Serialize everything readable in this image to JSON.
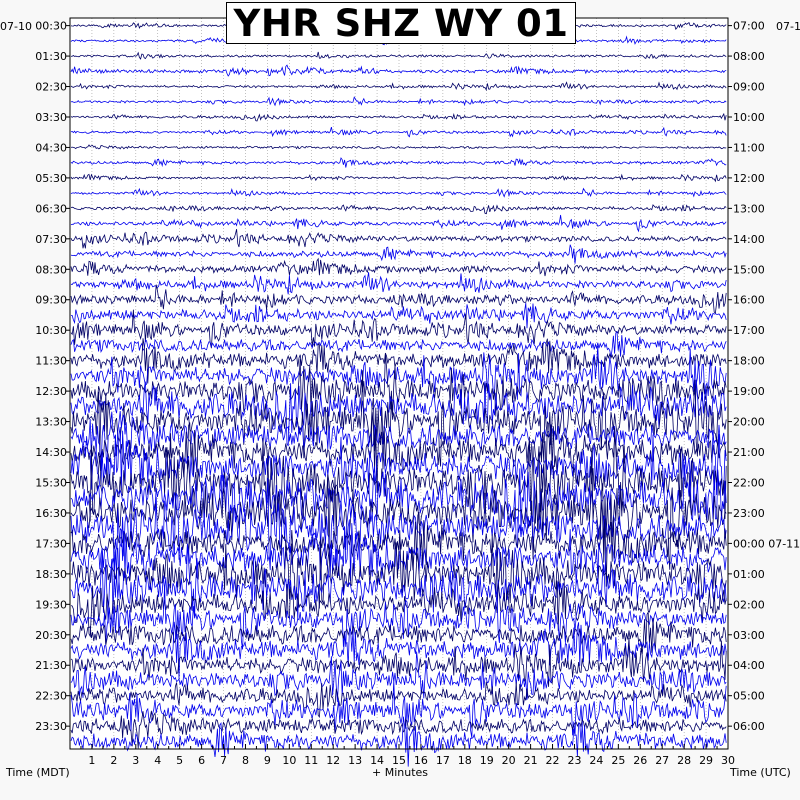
{
  "chart_data": {
    "type": "line",
    "title": "YHR SHZ WY 01",
    "xlabel": "+ Minutes",
    "left_axis_label": "Time (MDT)",
    "right_axis_label": "Time (UTC)",
    "left_date_label": "07-10",
    "right_date_label": "07-1",
    "x_ticks": [
      "1",
      "2",
      "3",
      "4",
      "5",
      "6",
      "7",
      "8",
      "9",
      "10",
      "11",
      "12",
      "13",
      "14",
      "15",
      "16",
      "17",
      "18",
      "19",
      "20",
      "21",
      "22",
      "23",
      "24",
      "25",
      "26",
      "27",
      "28",
      "29",
      "30"
    ],
    "xlim": [
      0,
      30
    ],
    "left_ticks": [
      "00:30",
      "01:30",
      "02:30",
      "03:30",
      "04:30",
      "05:30",
      "06:30",
      "07:30",
      "08:30",
      "09:30",
      "10:30",
      "11:30",
      "12:30",
      "13:30",
      "14:30",
      "15:30",
      "16:30",
      "17:30",
      "18:30",
      "19:30",
      "20:30",
      "21:30",
      "22:30",
      "23:30"
    ],
    "right_ticks": [
      "07:00",
      "08:00",
      "09:00",
      "10:00",
      "11:00",
      "12:00",
      "13:00",
      "14:00",
      "15:00",
      "16:00",
      "17:00",
      "18:00",
      "19:00",
      "20:00",
      "21:00",
      "22:00",
      "23:00",
      "00:00 07-11",
      "01:00",
      "02:00",
      "03:00",
      "04:00",
      "05:00",
      "06:00"
    ],
    "trace_colors": [
      "#000066",
      "#0000ee"
    ],
    "trace_count": 48,
    "trace_activity": [
      0.3,
      0.3,
      0.3,
      0.4,
      0.3,
      0.3,
      0.3,
      0.3,
      0.3,
      0.4,
      0.3,
      0.3,
      0.4,
      0.5,
      0.7,
      0.8,
      0.9,
      0.9,
      1.0,
      1.2,
      1.2,
      1.6,
      1.9,
      2.2,
      2.5,
      3.0,
      3.0,
      3.2,
      3.4,
      3.5,
      3.6,
      3.8,
      3.8,
      3.6,
      3.6,
      3.4,
      3.2,
      3.0,
      2.4,
      2.0,
      2.6,
      2.4,
      2.0,
      1.9,
      1.6,
      1.8,
      1.9,
      2.1
    ]
  }
}
